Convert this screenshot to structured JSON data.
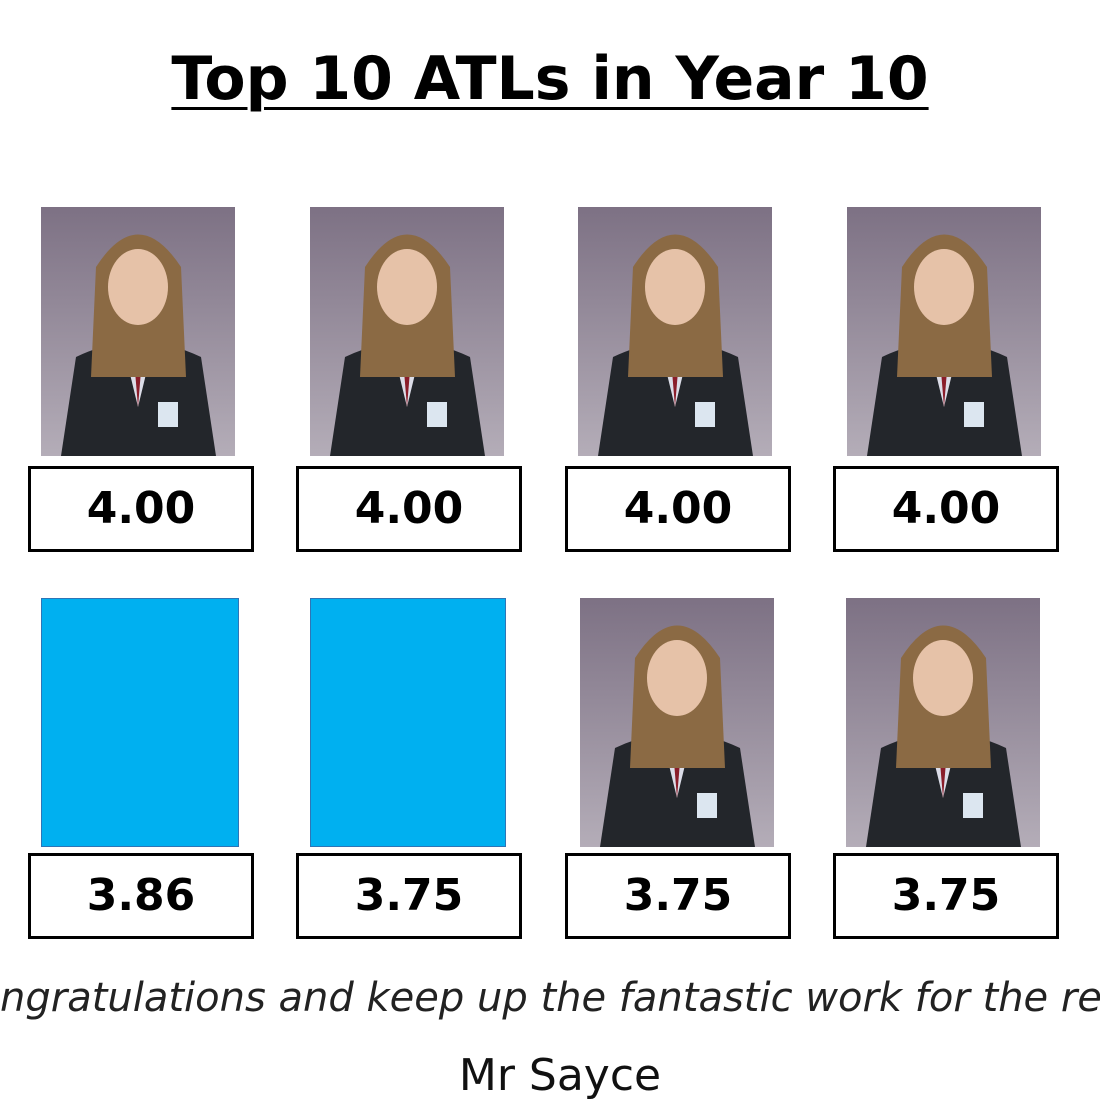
{
  "title": "Top 10 ATLs in Year 10",
  "rows": [
    {
      "scores": [
        "4.00",
        "4.00",
        "4.00",
        "4.00"
      ]
    },
    {
      "scores": [
        "3.86",
        "3.75",
        "3.75",
        "3.75"
      ]
    }
  ],
  "message": "ngratulations and keep up the fantastic work for the rest",
  "signature": "Mr Sayce"
}
